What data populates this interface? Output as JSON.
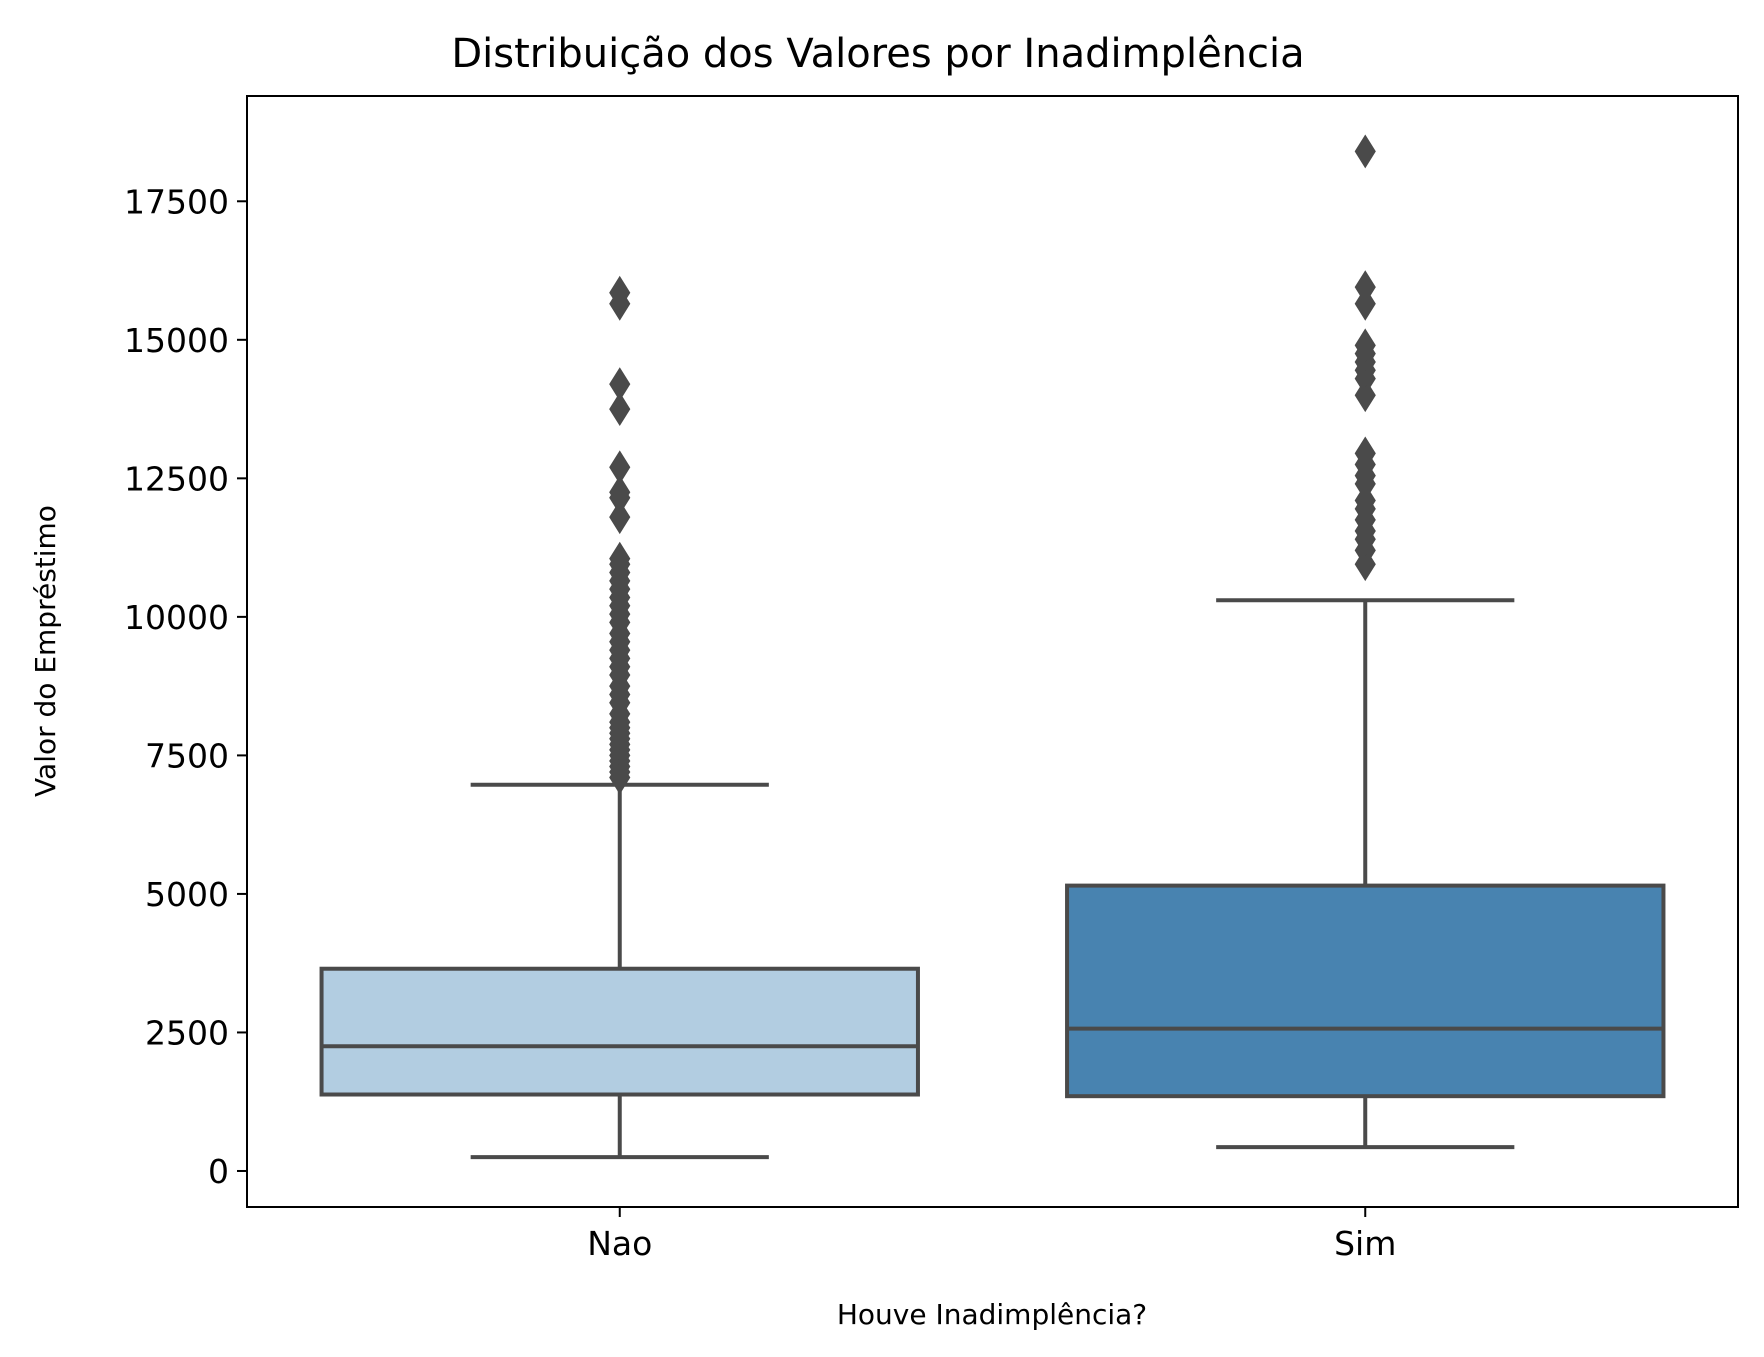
{
  "chart_data": {
    "type": "box",
    "title": "Distribuição dos Valores por Inadimplência",
    "xlabel": "Houve Inadimplência?",
    "ylabel": "Valor do Empréstimo",
    "ylim": [
      -650,
      19400
    ],
    "yticks": [
      0,
      2500,
      5000,
      7500,
      10000,
      12500,
      15000,
      17500
    ],
    "grid": false,
    "line_color": "#4a4a4a",
    "categories": [
      "Nao",
      "Sim"
    ],
    "boxes": [
      {
        "category": "Nao",
        "color": "#b2cde1",
        "whisker_low": 250,
        "q1": 1380,
        "median": 2250,
        "q3": 3650,
        "whisker_high": 6970,
        "outliers": [
          7100,
          7200,
          7300,
          7400,
          7500,
          7600,
          7700,
          7800,
          7900,
          8000,
          8100,
          8250,
          8450,
          8600,
          8750,
          8950,
          9100,
          9250,
          9400,
          9550,
          9700,
          9900,
          10050,
          10200,
          10350,
          10500,
          10650,
          10800,
          10950,
          11050,
          11800,
          12150,
          12250,
          12700,
          13750,
          14200,
          15650,
          15850
        ]
      },
      {
        "category": "Sim",
        "color": "#4883b0",
        "whisker_low": 430,
        "q1": 1350,
        "median": 2570,
        "q3": 5150,
        "whisker_high": 10300,
        "outliers": [
          10950,
          11200,
          11400,
          11550,
          11750,
          11950,
          12100,
          12400,
          12550,
          12750,
          12950,
          14000,
          14300,
          14450,
          14600,
          14750,
          14900,
          15650,
          15950,
          18400
        ]
      }
    ]
  }
}
